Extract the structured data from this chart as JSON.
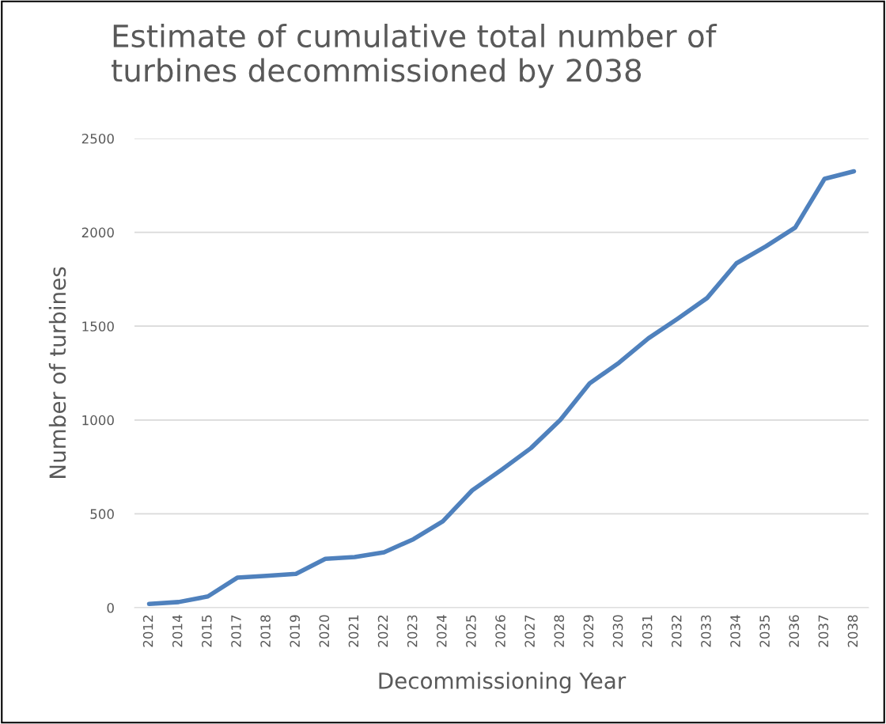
{
  "chart_data": {
    "type": "line",
    "title": "Estimate of cumulative total number of\nturbines decommissioned by 2038",
    "xlabel": "Decommissioning Year",
    "ylabel": "Number of turbines",
    "categories": [
      "2012",
      "2014",
      "2015",
      "2017",
      "2018",
      "2019",
      "2020",
      "2021",
      "2022",
      "2023",
      "2024",
      "2025",
      "2026",
      "2027",
      "2028",
      "2029",
      "2030",
      "2031",
      "2032",
      "2033",
      "2034",
      "2035",
      "2036",
      "2037",
      "2038"
    ],
    "series": [
      {
        "color": "#4f81bd",
        "values": [
          20,
          30,
          60,
          160,
          170,
          180,
          260,
          270,
          295,
          365,
          460,
          625,
          735,
          850,
          1000,
          1195,
          1305,
          1435,
          1540,
          1650,
          1835,
          1925,
          2025,
          2285,
          2325
        ]
      }
    ],
    "ylim": [
      0,
      2500
    ],
    "yticks": [
      0,
      500,
      1000,
      1500,
      2000,
      2500
    ],
    "grid": "y",
    "marker": "none",
    "line_style": "solid"
  }
}
